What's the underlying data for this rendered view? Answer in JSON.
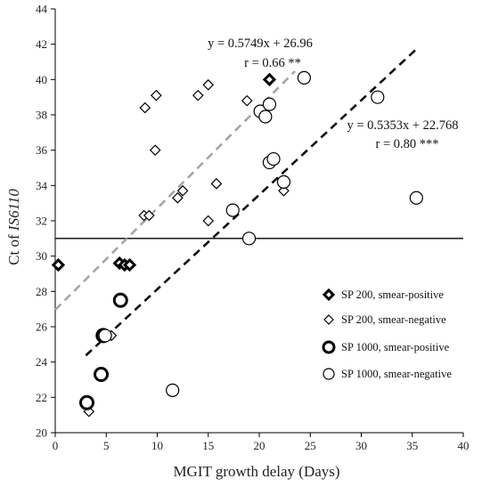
{
  "chart_data": {
    "type": "scatter",
    "xlabel": "MGIT growth delay (Days)",
    "ylabel_prefix": "Ct of ",
    "ylabel_italic": "IS6110",
    "xlim": [
      0,
      40
    ],
    "ylim": [
      20,
      44
    ],
    "xticks": [
      0,
      5,
      10,
      15,
      20,
      25,
      30,
      35,
      40
    ],
    "yticks": [
      20,
      22,
      24,
      26,
      28,
      30,
      32,
      34,
      36,
      38,
      40,
      42,
      44
    ],
    "grid": false,
    "legend_position": "bottom-right",
    "threshold_y": 31,
    "series": [
      {
        "name": "SP 200, smear-positive",
        "marker": "diamond",
        "style": "bold",
        "points": [
          {
            "x": 0.3,
            "y": 29.5
          },
          {
            "x": 6.3,
            "y": 29.6
          },
          {
            "x": 6.8,
            "y": 29.5
          },
          {
            "x": 7.3,
            "y": 29.5
          },
          {
            "x": 21.0,
            "y": 40.0
          }
        ]
      },
      {
        "name": "SP 200, smear-negative",
        "marker": "diamond",
        "style": "thin",
        "points": [
          {
            "x": 3.3,
            "y": 21.2
          },
          {
            "x": 5.5,
            "y": 25.5
          },
          {
            "x": 8.7,
            "y": 32.3
          },
          {
            "x": 9.2,
            "y": 32.3
          },
          {
            "x": 8.8,
            "y": 38.4
          },
          {
            "x": 9.9,
            "y": 39.1
          },
          {
            "x": 9.8,
            "y": 36.0
          },
          {
            "x": 12.0,
            "y": 33.3
          },
          {
            "x": 12.5,
            "y": 33.7
          },
          {
            "x": 14.0,
            "y": 39.1
          },
          {
            "x": 15.0,
            "y": 39.7
          },
          {
            "x": 15.0,
            "y": 32.0
          },
          {
            "x": 15.8,
            "y": 34.1
          },
          {
            "x": 18.8,
            "y": 38.8
          },
          {
            "x": 22.4,
            "y": 33.7
          }
        ]
      },
      {
        "name": "SP 1000, smear-positive",
        "marker": "circle",
        "style": "bold",
        "points": [
          {
            "x": 3.1,
            "y": 21.7
          },
          {
            "x": 4.5,
            "y": 23.3
          },
          {
            "x": 4.7,
            "y": 25.5
          },
          {
            "x": 6.4,
            "y": 27.5
          }
        ]
      },
      {
        "name": "SP 1000, smear-negative",
        "marker": "circle",
        "style": "thin",
        "points": [
          {
            "x": 4.9,
            "y": 25.5
          },
          {
            "x": 11.5,
            "y": 22.4
          },
          {
            "x": 17.4,
            "y": 32.6
          },
          {
            "x": 19.0,
            "y": 31.0
          },
          {
            "x": 20.1,
            "y": 38.2
          },
          {
            "x": 20.6,
            "y": 37.9
          },
          {
            "x": 21.0,
            "y": 38.6
          },
          {
            "x": 21.0,
            "y": 35.3
          },
          {
            "x": 21.4,
            "y": 35.5
          },
          {
            "x": 22.4,
            "y": 34.2
          },
          {
            "x": 24.4,
            "y": 40.1
          },
          {
            "x": 31.6,
            "y": 39.0
          },
          {
            "x": 35.4,
            "y": 33.3
          }
        ]
      }
    ],
    "trendlines": [
      {
        "slope": 0.5749,
        "intercept": 26.96,
        "x_range": [
          0,
          23.5
        ],
        "color": "#a6a6a6",
        "dash": true,
        "equation": "y = 0.5749x + 26.96",
        "r_label": "r = 0.66 **"
      },
      {
        "slope": 0.5353,
        "intercept": 22.768,
        "x_range": [
          3,
          35.5
        ],
        "color": "#111111",
        "dash": true,
        "equation": "y = 0.5353x + 22.768",
        "r_label": "r = 0.80 ***"
      }
    ]
  }
}
